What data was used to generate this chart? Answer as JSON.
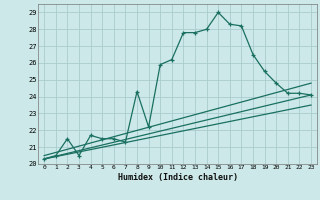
{
  "title": "",
  "xlabel": "Humidex (Indice chaleur)",
  "bg_color": "#cce8e8",
  "grid_color": "#aacccc",
  "line_color": "#1a7060",
  "xlim": [
    -0.5,
    23.5
  ],
  "ylim": [
    20,
    29.5
  ],
  "xticks": [
    0,
    1,
    2,
    3,
    4,
    5,
    6,
    7,
    8,
    9,
    10,
    11,
    12,
    13,
    14,
    15,
    16,
    17,
    18,
    19,
    20,
    21,
    22,
    23
  ],
  "yticks": [
    20,
    21,
    22,
    23,
    24,
    25,
    26,
    27,
    28,
    29
  ],
  "series1_x": [
    0,
    1,
    2,
    3,
    4,
    5,
    6,
    7,
    8,
    9,
    10,
    11,
    12,
    13,
    14,
    15,
    16,
    17,
    18,
    19,
    20,
    21,
    22,
    23
  ],
  "series1_y": [
    20.3,
    20.5,
    21.5,
    20.5,
    21.7,
    21.5,
    21.5,
    21.3,
    24.3,
    22.2,
    25.9,
    26.2,
    27.8,
    27.8,
    28.0,
    29.0,
    28.3,
    28.2,
    26.5,
    25.5,
    24.8,
    24.2,
    24.2,
    24.1
  ],
  "series2_x": [
    0,
    23
  ],
  "series2_y": [
    20.5,
    24.8
  ],
  "series3_x": [
    0,
    23
  ],
  "series3_y": [
    20.3,
    24.1
  ],
  "series4_x": [
    0,
    23
  ],
  "series4_y": [
    20.3,
    23.5
  ]
}
